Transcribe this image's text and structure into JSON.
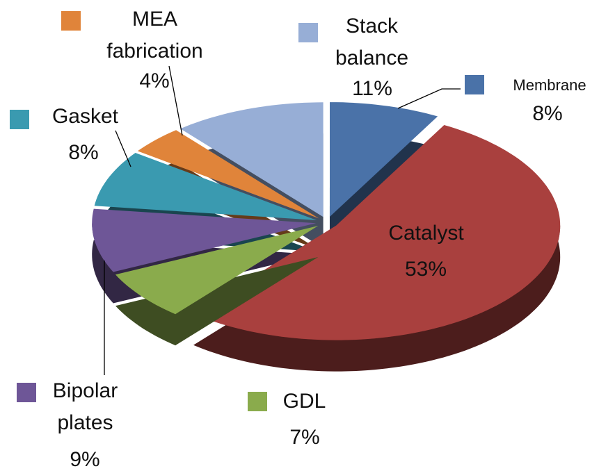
{
  "chart_data": {
    "type": "pie",
    "categories": [
      "Membrane",
      "Catalyst",
      "GDL",
      "Bipolar plates",
      "Gasket",
      "MEA fabrication",
      "Stack balance"
    ],
    "values": [
      8,
      53,
      7,
      9,
      8,
      4,
      11
    ],
    "value_labels": [
      "8%",
      "53%",
      "7%",
      "9%",
      "8%",
      "4%",
      "11%"
    ],
    "colors": [
      "#4a72a8",
      "#a9403e",
      "#8aab4c",
      "#6e5697",
      "#3a9ab0",
      "#e0843a",
      "#97aed6"
    ]
  }
}
